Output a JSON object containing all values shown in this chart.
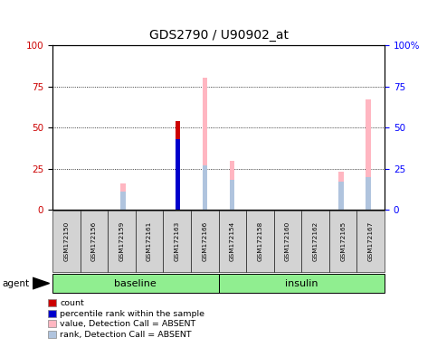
{
  "title": "GDS2790 / U90902_at",
  "samples": [
    "GSM172150",
    "GSM172156",
    "GSM172159",
    "GSM172161",
    "GSM172163",
    "GSM172166",
    "GSM172154",
    "GSM172158",
    "GSM172160",
    "GSM172162",
    "GSM172165",
    "GSM172167"
  ],
  "count_values": [
    0,
    0,
    0,
    0,
    54,
    0,
    0,
    0,
    0,
    0,
    0,
    0
  ],
  "percentile_values": [
    0,
    0,
    0,
    0,
    43,
    0,
    0,
    0,
    0,
    0,
    0,
    0
  ],
  "absent_value_values": [
    0,
    0,
    16,
    0,
    0,
    80,
    30,
    0,
    0,
    0,
    23,
    67
  ],
  "absent_rank_values": [
    0,
    0,
    11,
    0,
    0,
    27,
    18,
    0,
    0,
    0,
    17,
    20
  ],
  "ylim": [
    0,
    100
  ],
  "yticks": [
    0,
    25,
    50,
    75,
    100
  ],
  "count_color": "#cc0000",
  "percentile_color": "#0000cc",
  "absent_value_color": "#ffb6c1",
  "absent_rank_color": "#b0c4de",
  "legend_items": [
    {
      "color": "#cc0000",
      "label": "count"
    },
    {
      "color": "#0000cc",
      "label": "percentile rank within the sample"
    },
    {
      "color": "#ffb6c1",
      "label": "value, Detection Call = ABSENT"
    },
    {
      "color": "#b0c4de",
      "label": "rank, Detection Call = ABSENT"
    }
  ],
  "baseline_samples": 6,
  "group_names": [
    "baseline",
    "insulin"
  ],
  "group_color": "#90EE90",
  "agent_label": "agent"
}
